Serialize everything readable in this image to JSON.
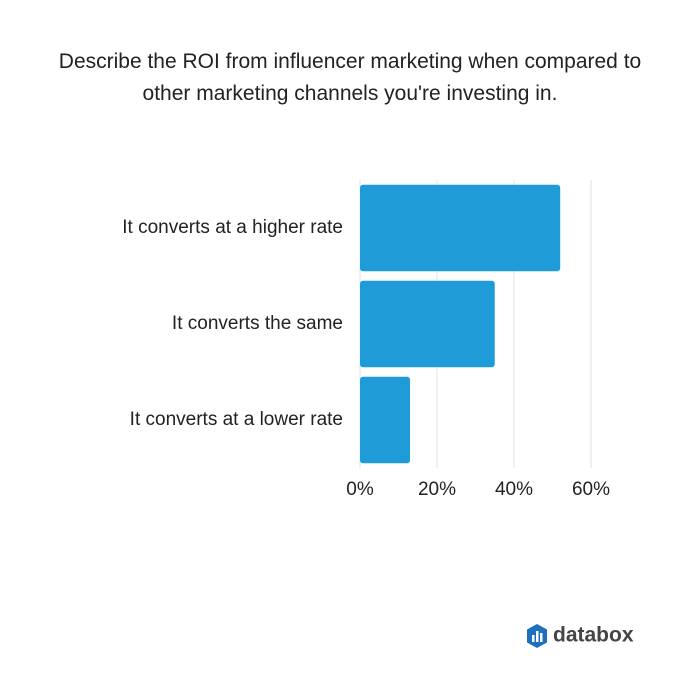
{
  "chart_data": {
    "type": "bar",
    "orientation": "horizontal",
    "title": "Describe the ROI from influencer marketing when compared to other marketing channels you're investing in.",
    "categories": [
      "It converts at a higher rate",
      "It converts the same",
      "It converts at a lower rate"
    ],
    "values": [
      52,
      35,
      13
    ],
    "color": "#1f9bd7",
    "xlim": [
      0,
      60
    ],
    "xticks": [
      {
        "value": 0,
        "label": "0%"
      },
      {
        "value": 20,
        "label": "20%"
      },
      {
        "value": 40,
        "label": "40%"
      },
      {
        "value": 60,
        "label": "60%"
      }
    ],
    "grid": true
  },
  "logo": "databox"
}
